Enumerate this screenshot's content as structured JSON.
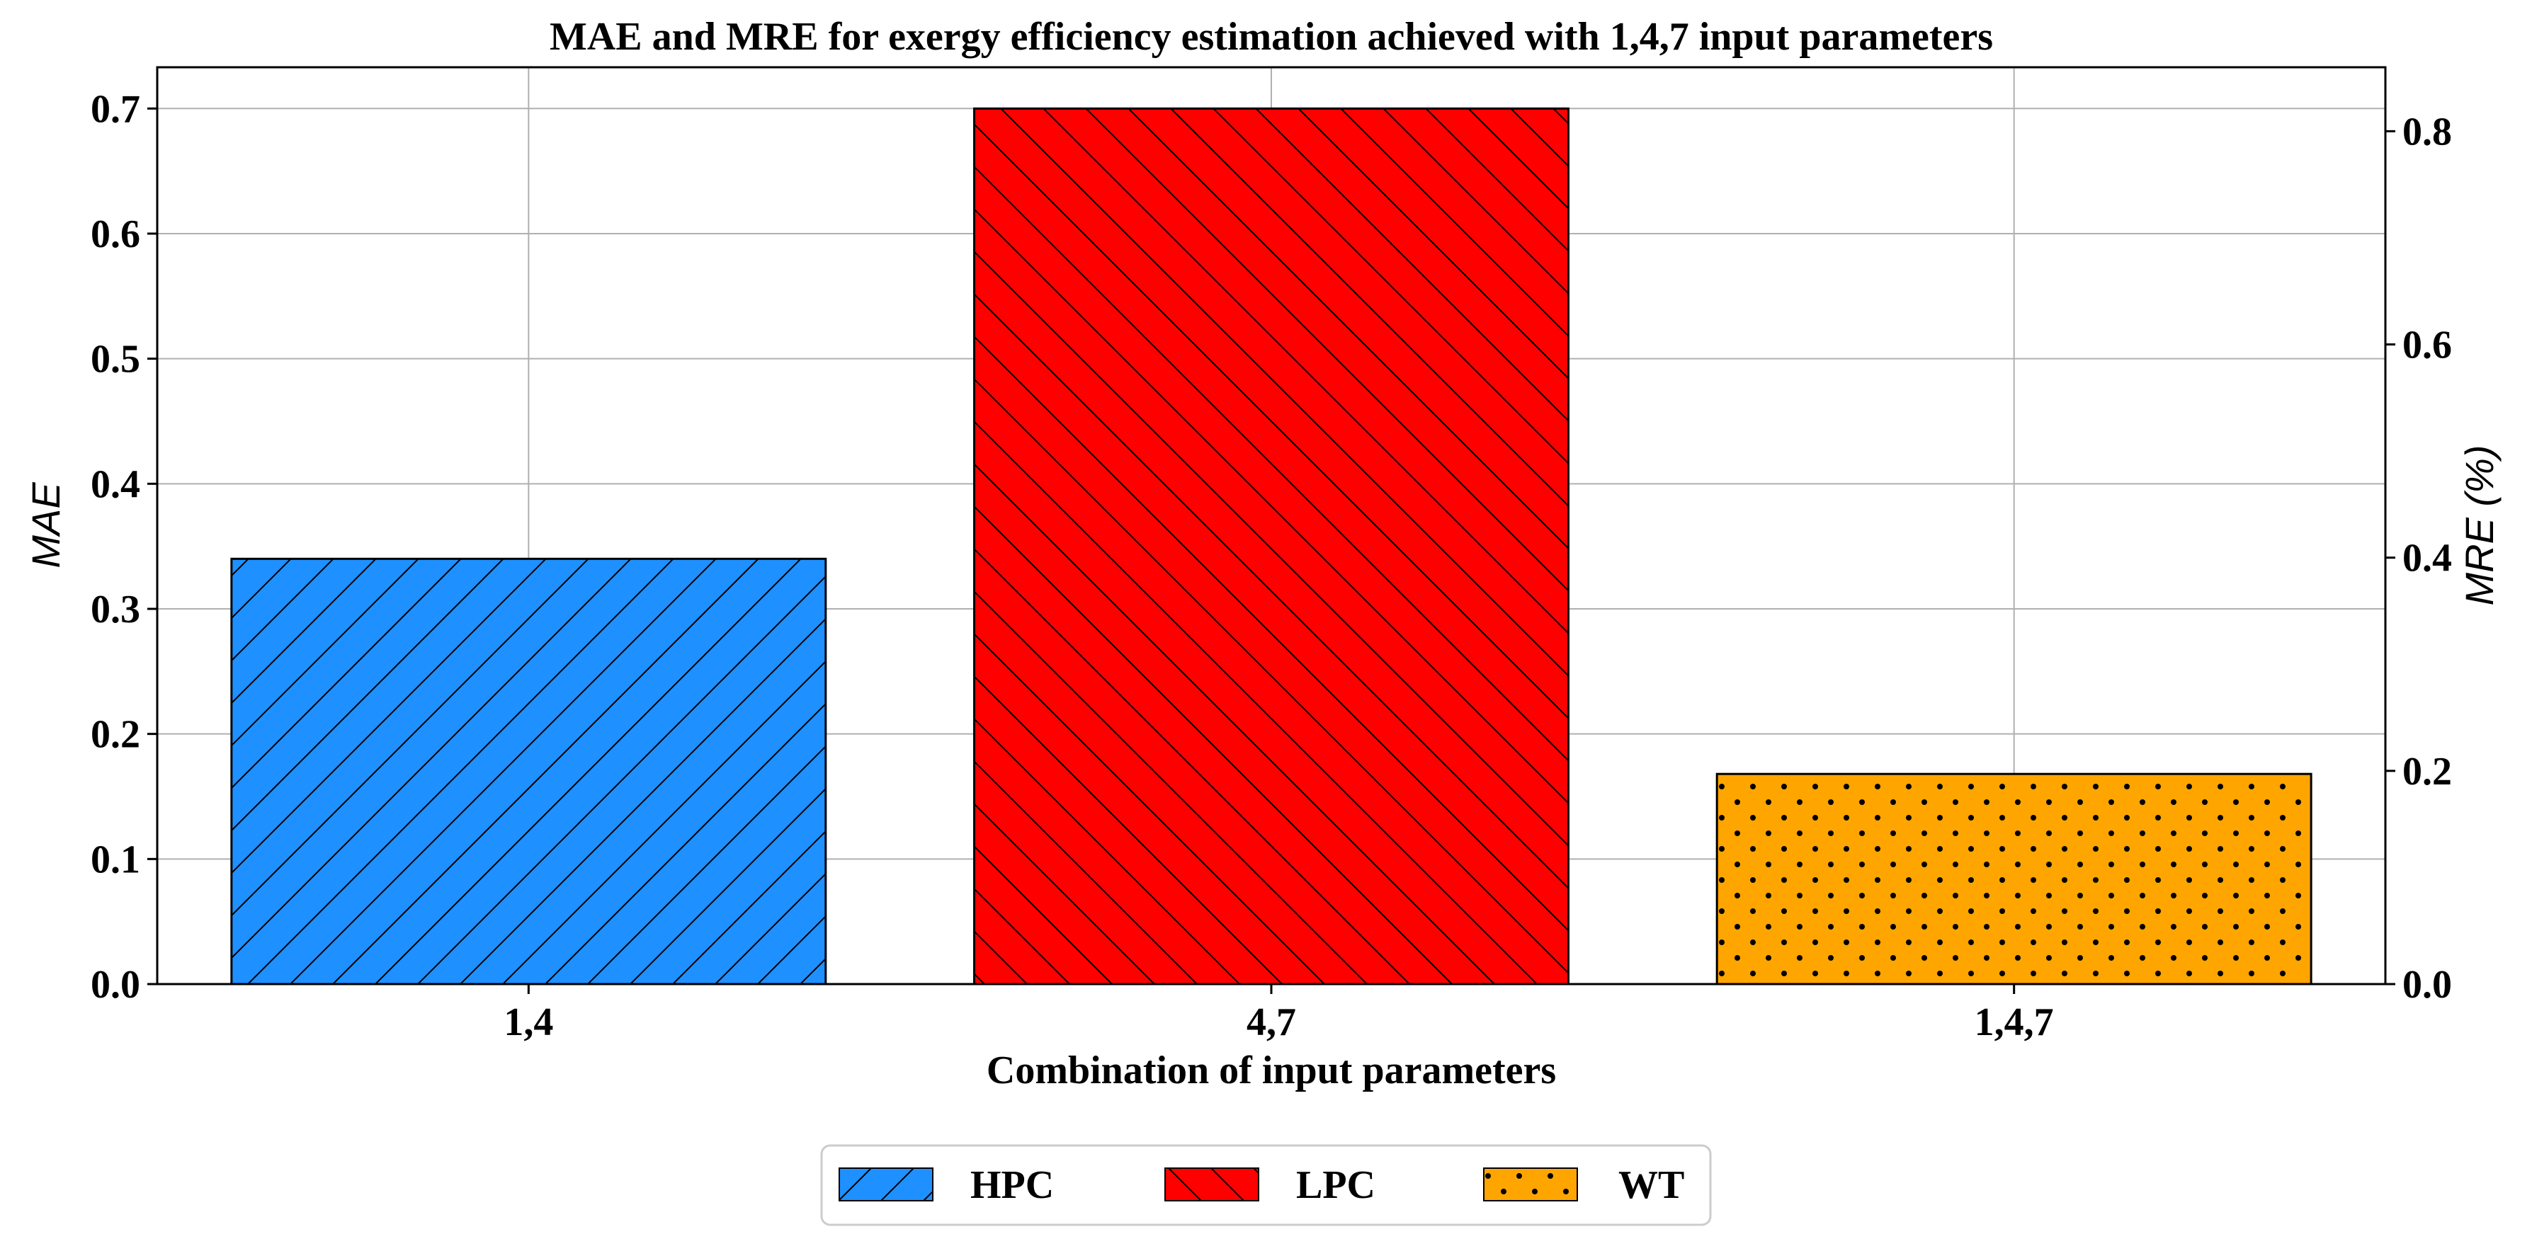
{
  "chart_data": {
    "type": "bar",
    "title": "MAE and MRE for exergy efficiency estimation achieved with 1,4,7 input parameters",
    "xlabel": "Combination of input parameters",
    "ylabel": "MAE",
    "y2label": "MRE (%)",
    "categories": [
      "1,4",
      "4,7",
      "1,4,7"
    ],
    "series": [
      {
        "name": "HPC",
        "category": "1,4",
        "value": 0.34,
        "color": "#1e90ff",
        "hatch": "/"
      },
      {
        "name": "LPC",
        "category": "4,7",
        "value": 0.7,
        "color": "#ff0000",
        "hatch": "\\"
      },
      {
        "name": "WT",
        "category": "1,4,7",
        "value": 0.168,
        "color": "#ffa500",
        "hatch": "."
      }
    ],
    "ylim": [
      0,
      0.733
    ],
    "yticks": [
      "0.0",
      "0.1",
      "0.2",
      "0.3",
      "0.4",
      "0.5",
      "0.6",
      "0.7"
    ],
    "y2lim": [
      0,
      0.86
    ],
    "y2ticks": [
      "0.0",
      "0.2",
      "0.4",
      "0.6",
      "0.8"
    ],
    "grid": true,
    "legend": {
      "placement": "bottom-center",
      "entries": [
        "HPC",
        "LPC",
        "WT"
      ]
    }
  }
}
